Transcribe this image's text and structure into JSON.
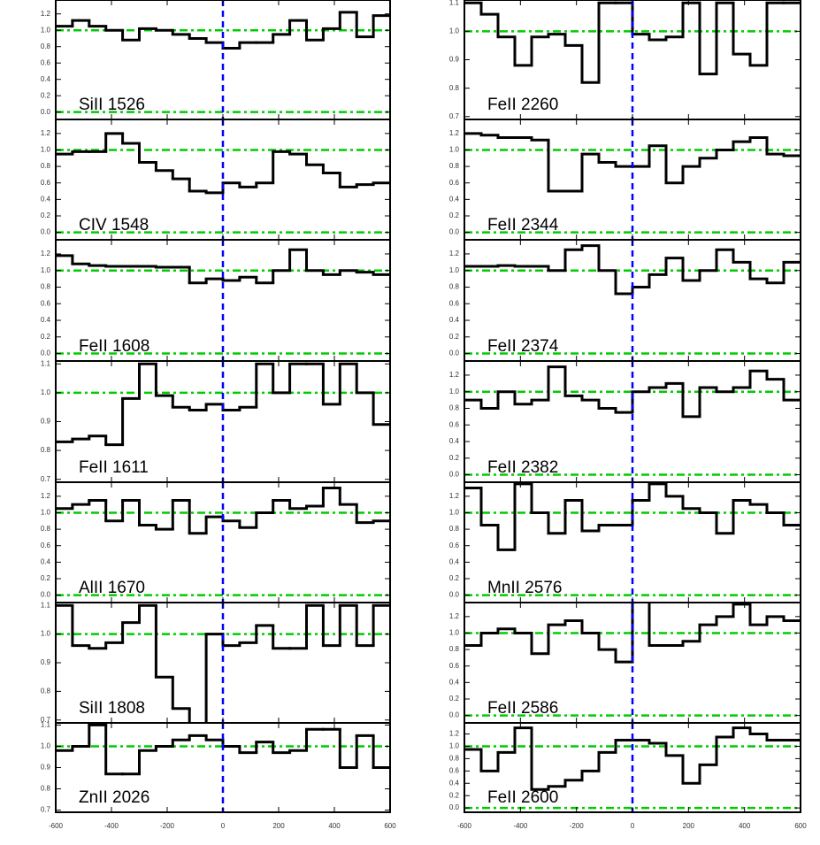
{
  "chart_data": [
    {
      "type": "line",
      "drawstyle": "steps-post",
      "label": "SiII 1526",
      "color": "#000000",
      "xlim": [
        -600,
        600
      ],
      "xticks": [
        -600,
        -400,
        -200,
        0,
        200,
        400,
        600
      ],
      "ylim": [
        -0.09,
        1.37
      ],
      "yticks": [
        {
          "value": 0,
          "label": "0.0"
        },
        0.2,
        0.4,
        0.6,
        0.8,
        {
          "value": 1,
          "label": "1.0"
        },
        1.2
      ],
      "hlines": {
        "values": [
          0,
          1
        ],
        "color": "#00cc00"
      },
      "vlines": {
        "values": [
          0
        ],
        "color": "#0000ff"
      },
      "x": [
        -600,
        -540,
        -480,
        -420,
        -360,
        -300,
        -240,
        -180,
        -120,
        -60,
        0,
        60,
        120,
        180,
        240,
        300,
        360,
        420,
        480,
        540
      ],
      "values": [
        1.05,
        1.12,
        1.05,
        1.0,
        0.88,
        1.02,
        1.0,
        0.95,
        0.9,
        0.85,
        0.78,
        0.85,
        0.85,
        0.95,
        1.12,
        0.88,
        1.02,
        1.22,
        0.92,
        1.18
      ]
    },
    {
      "type": "line",
      "drawstyle": "steps-post",
      "label": "CIV 1548",
      "color": "#000000",
      "xlim": [
        -600,
        600
      ],
      "xticks": [
        -600,
        -400,
        -200,
        0,
        200,
        400,
        600
      ],
      "ylim": [
        -0.09,
        1.37
      ],
      "yticks": [
        {
          "value": 0,
          "label": "0.0"
        },
        0.2,
        0.4,
        0.6,
        0.8,
        {
          "value": 1,
          "label": "1.0"
        },
        1.2
      ],
      "hlines": {
        "values": [
          0,
          1
        ],
        "color": "#00cc00"
      },
      "vlines": {
        "values": [
          0
        ],
        "color": "#0000ff"
      },
      "x": [
        -600,
        -540,
        -480,
        -420,
        -360,
        -300,
        -240,
        -180,
        -120,
        -60,
        0,
        60,
        120,
        180,
        240,
        300,
        360,
        420,
        480,
        540
      ],
      "values": [
        0.95,
        0.98,
        0.98,
        1.2,
        1.08,
        0.85,
        0.75,
        0.65,
        0.5,
        0.48,
        0.6,
        0.55,
        0.6,
        0.98,
        0.95,
        0.82,
        0.72,
        0.55,
        0.58,
        0.6
      ]
    },
    {
      "type": "line",
      "drawstyle": "steps-post",
      "label": "FeII 1608",
      "color": "#000000",
      "xlim": [
        -600,
        600
      ],
      "xticks": [
        -600,
        -400,
        -200,
        0,
        200,
        400,
        600
      ],
      "ylim": [
        -0.09,
        1.37
      ],
      "yticks": [
        {
          "value": 0,
          "label": "0.0"
        },
        0.2,
        0.4,
        0.6,
        0.8,
        {
          "value": 1,
          "label": "1.0"
        },
        1.2
      ],
      "hlines": {
        "values": [
          0,
          1
        ],
        "color": "#00cc00"
      },
      "vlines": {
        "values": [
          0
        ],
        "color": "#0000ff"
      },
      "x": [
        -600,
        -540,
        -480,
        -420,
        -360,
        -300,
        -240,
        -180,
        -120,
        -60,
        0,
        60,
        120,
        180,
        240,
        300,
        360,
        420,
        480,
        540
      ],
      "values": [
        1.18,
        1.08,
        1.06,
        1.05,
        1.05,
        1.05,
        1.04,
        1.04,
        0.85,
        0.9,
        0.88,
        0.92,
        0.85,
        1.0,
        1.25,
        1.0,
        0.95,
        1.0,
        0.98,
        0.95
      ]
    },
    {
      "type": "line",
      "drawstyle": "steps-post",
      "label": "FeII 1611",
      "color": "#000000",
      "xlim": [
        -600,
        600
      ],
      "xticks": [
        -600,
        -400,
        -200,
        0,
        200,
        400,
        600
      ],
      "ylim": [
        0.69,
        1.11
      ],
      "yticks": [
        0.7,
        0.8,
        0.9,
        {
          "value": 1,
          "label": "1.0"
        },
        1.1
      ],
      "hlines": {
        "values": [
          1
        ],
        "color": "#00cc00"
      },
      "vlines": {
        "values": [
          0
        ],
        "color": "#0000ff"
      },
      "x": [
        -600,
        -540,
        -480,
        -420,
        -360,
        -300,
        -240,
        -180,
        -120,
        -60,
        0,
        60,
        120,
        180,
        240,
        300,
        360,
        420,
        480,
        540
      ],
      "values": [
        0.83,
        0.84,
        0.85,
        0.82,
        0.98,
        1.1,
        0.99,
        0.95,
        0.94,
        0.96,
        0.94,
        0.95,
        1.1,
        1.0,
        1.1,
        1.1,
        0.96,
        1.1,
        1.0,
        0.89
      ]
    },
    {
      "type": "line",
      "drawstyle": "steps-post",
      "label": "AlII 1670",
      "color": "#000000",
      "xlim": [
        -600,
        600
      ],
      "xticks": [
        -600,
        -400,
        -200,
        0,
        200,
        400,
        600
      ],
      "ylim": [
        -0.09,
        1.37
      ],
      "yticks": [
        {
          "value": 0,
          "label": "0.0"
        },
        0.2,
        0.4,
        0.6,
        0.8,
        {
          "value": 1,
          "label": "1.0"
        },
        1.2
      ],
      "hlines": {
        "values": [
          0,
          1
        ],
        "color": "#00cc00"
      },
      "vlines": {
        "values": [
          0
        ],
        "color": "#0000ff"
      },
      "x": [
        -600,
        -540,
        -480,
        -420,
        -360,
        -300,
        -240,
        -180,
        -120,
        -60,
        0,
        60,
        120,
        180,
        240,
        300,
        360,
        420,
        480,
        540
      ],
      "values": [
        1.05,
        1.1,
        1.15,
        0.9,
        1.15,
        0.85,
        0.8,
        1.15,
        0.75,
        0.95,
        0.9,
        0.82,
        1.0,
        1.15,
        1.05,
        1.08,
        1.3,
        1.1,
        0.88,
        0.9
      ]
    },
    {
      "type": "line",
      "drawstyle": "steps-post",
      "label": "SiII 1808",
      "color": "#000000",
      "xlim": [
        -600,
        600
      ],
      "xticks": [
        -600,
        -400,
        -200,
        0,
        200,
        400,
        600
      ],
      "ylim": [
        0.69,
        1.11
      ],
      "yticks": [
        0.7,
        0.8,
        0.9,
        {
          "value": 1,
          "label": "1.0"
        },
        1.1
      ],
      "hlines": {
        "values": [
          1
        ],
        "color": "#00cc00"
      },
      "vlines": {
        "values": [
          0
        ],
        "color": "#0000ff"
      },
      "x": [
        -600,
        -540,
        -480,
        -420,
        -360,
        -300,
        -240,
        -180,
        -120,
        -60,
        0,
        60,
        120,
        180,
        240,
        300,
        360,
        420,
        480,
        540
      ],
      "values": [
        1.1,
        0.96,
        0.95,
        0.97,
        1.04,
        1.1,
        0.85,
        0.74,
        0.68,
        1.0,
        0.96,
        0.97,
        1.03,
        0.95,
        0.95,
        1.1,
        0.96,
        1.1,
        0.96,
        1.1
      ]
    },
    {
      "type": "line",
      "drawstyle": "steps-post",
      "label": "ZnII 2026",
      "color": "#000000",
      "xlim": [
        -600,
        600
      ],
      "xticks": [
        -600,
        -400,
        -200,
        0,
        200,
        400,
        600
      ],
      "ylim": [
        0.69,
        1.11
      ],
      "yticks": [
        0.7,
        0.8,
        0.9,
        {
          "value": 1,
          "label": "1.0"
        },
        1.1
      ],
      "hlines": {
        "values": [
          1
        ],
        "color": "#00cc00"
      },
      "vlines": {
        "values": [
          0
        ],
        "color": "#0000ff"
      },
      "x": [
        -600,
        -540,
        -480,
        -420,
        -360,
        -300,
        -240,
        -180,
        -120,
        -60,
        0,
        60,
        120,
        180,
        240,
        300,
        360,
        420,
        480,
        540
      ],
      "values": [
        0.98,
        1.0,
        1.1,
        0.87,
        0.87,
        0.98,
        1.0,
        1.03,
        1.05,
        1.03,
        1.0,
        0.97,
        1.02,
        0.97,
        0.98,
        1.08,
        1.08,
        0.9,
        1.05,
        0.9
      ]
    },
    {
      "type": "line",
      "drawstyle": "steps-post",
      "label": "FeII 2260",
      "color": "#000000",
      "xlim": [
        -600,
        600
      ],
      "xticks": [
        -600,
        -400,
        -200,
        0,
        200,
        400,
        600
      ],
      "ylim": [
        0.69,
        1.11
      ],
      "yticks": [
        0.7,
        0.8,
        0.9,
        {
          "value": 1,
          "label": "1.0"
        },
        1.1
      ],
      "hlines": {
        "values": [
          1
        ],
        "color": "#00cc00"
      },
      "vlines": {
        "values": [
          0
        ],
        "color": "#0000ff"
      },
      "x": [
        -600,
        -540,
        -480,
        -420,
        -360,
        -300,
        -240,
        -180,
        -120,
        -60,
        0,
        60,
        120,
        180,
        240,
        300,
        360,
        420,
        480,
        540
      ],
      "values": [
        1.1,
        1.06,
        0.98,
        0.88,
        0.98,
        0.99,
        0.95,
        0.82,
        1.1,
        1.1,
        0.99,
        0.97,
        0.98,
        1.1,
        0.85,
        1.1,
        0.92,
        0.88,
        1.1,
        1.1
      ]
    },
    {
      "type": "line",
      "drawstyle": "steps-post",
      "label": "FeII 2344",
      "color": "#000000",
      "xlim": [
        -600,
        600
      ],
      "xticks": [
        -600,
        -400,
        -200,
        0,
        200,
        400,
        600
      ],
      "ylim": [
        -0.09,
        1.37
      ],
      "yticks": [
        {
          "value": 0,
          "label": "0.0"
        },
        0.2,
        0.4,
        0.6,
        0.8,
        {
          "value": 1,
          "label": "1.0"
        },
        1.2
      ],
      "hlines": {
        "values": [
          0,
          1
        ],
        "color": "#00cc00"
      },
      "vlines": {
        "values": [
          0
        ],
        "color": "#0000ff"
      },
      "x": [
        -600,
        -540,
        -480,
        -420,
        -360,
        -300,
        -240,
        -180,
        -120,
        -60,
        0,
        60,
        120,
        180,
        240,
        300,
        360,
        420,
        480,
        540
      ],
      "values": [
        1.2,
        1.18,
        1.15,
        1.15,
        1.12,
        0.5,
        0.5,
        0.95,
        0.85,
        0.8,
        0.8,
        1.05,
        0.6,
        0.8,
        0.9,
        1.0,
        1.1,
        1.15,
        0.95,
        0.93
      ]
    },
    {
      "type": "line",
      "drawstyle": "steps-post",
      "label": "FeII 2374",
      "color": "#000000",
      "xlim": [
        -600,
        600
      ],
      "xticks": [
        -600,
        -400,
        -200,
        0,
        200,
        400,
        600
      ],
      "ylim": [
        -0.09,
        1.37
      ],
      "yticks": [
        {
          "value": 0,
          "label": "0.0"
        },
        0.2,
        0.4,
        0.6,
        0.8,
        {
          "value": 1,
          "label": "1.0"
        },
        1.2
      ],
      "hlines": {
        "values": [
          0,
          1
        ],
        "color": "#00cc00"
      },
      "vlines": {
        "values": [
          0
        ],
        "color": "#0000ff"
      },
      "x": [
        -600,
        -540,
        -480,
        -420,
        -360,
        -300,
        -240,
        -180,
        -120,
        -60,
        0,
        60,
        120,
        180,
        240,
        300,
        360,
        420,
        480,
        540
      ],
      "values": [
        1.05,
        1.05,
        1.06,
        1.05,
        1.05,
        1.0,
        1.25,
        1.3,
        1.0,
        0.72,
        0.8,
        0.95,
        1.15,
        0.88,
        1.0,
        1.25,
        1.1,
        0.9,
        0.85,
        1.1
      ]
    },
    {
      "type": "line",
      "drawstyle": "steps-post",
      "label": "FeII 2382",
      "color": "#000000",
      "xlim": [
        -600,
        600
      ],
      "xticks": [
        -600,
        -400,
        -200,
        0,
        200,
        400,
        600
      ],
      "ylim": [
        -0.09,
        1.37
      ],
      "yticks": [
        {
          "value": 0,
          "label": "0.0"
        },
        0.2,
        0.4,
        0.6,
        0.8,
        {
          "value": 1,
          "label": "1.0"
        },
        1.2
      ],
      "hlines": {
        "values": [
          0,
          1
        ],
        "color": "#00cc00"
      },
      "vlines": {
        "values": [
          0
        ],
        "color": "#0000ff"
      },
      "x": [
        -600,
        -540,
        -480,
        -420,
        -360,
        -300,
        -240,
        -180,
        -120,
        -60,
        0,
        60,
        120,
        180,
        240,
        300,
        360,
        420,
        480,
        540
      ],
      "values": [
        0.9,
        0.8,
        1.0,
        0.85,
        0.9,
        1.3,
        0.95,
        0.9,
        0.8,
        0.75,
        1.0,
        1.05,
        1.1,
        0.7,
        1.05,
        1.0,
        1.05,
        1.25,
        1.15,
        0.9
      ]
    },
    {
      "type": "line",
      "drawstyle": "steps-post",
      "label": "MnII 2576",
      "color": "#000000",
      "xlim": [
        -600,
        600
      ],
      "xticks": [
        -600,
        -400,
        -200,
        0,
        200,
        400,
        600
      ],
      "ylim": [
        -0.09,
        1.37
      ],
      "yticks": [
        {
          "value": 0,
          "label": "0.0"
        },
        0.2,
        0.4,
        0.6,
        0.8,
        {
          "value": 1,
          "label": "1.0"
        },
        1.2
      ],
      "hlines": {
        "values": [
          0,
          1
        ],
        "color": "#00cc00"
      },
      "vlines": {
        "values": [
          0
        ],
        "color": "#0000ff"
      },
      "x": [
        -600,
        -540,
        -480,
        -420,
        -360,
        -300,
        -240,
        -180,
        -120,
        -60,
        0,
        60,
        120,
        180,
        240,
        300,
        360,
        420,
        480,
        540
      ],
      "values": [
        1.3,
        0.85,
        0.55,
        1.35,
        1.0,
        0.75,
        1.15,
        0.78,
        0.85,
        0.85,
        1.15,
        1.35,
        1.2,
        1.05,
        1.0,
        0.75,
        1.15,
        1.1,
        1.0,
        0.85
      ]
    },
    {
      "type": "line",
      "drawstyle": "steps-post",
      "label": "FeII 2586",
      "color": "#000000",
      "xlim": [
        -600,
        600
      ],
      "xticks": [
        -600,
        -400,
        -200,
        0,
        200,
        400,
        600
      ],
      "ylim": [
        -0.09,
        1.37
      ],
      "yticks": [
        {
          "value": 0,
          "label": "0.0"
        },
        0.2,
        0.4,
        0.6,
        0.8,
        {
          "value": 1,
          "label": "1.0"
        },
        1.2
      ],
      "hlines": {
        "values": [
          0,
          1
        ],
        "color": "#00cc00"
      },
      "vlines": {
        "values": [
          0
        ],
        "color": "#0000ff"
      },
      "x": [
        -600,
        -540,
        -480,
        -420,
        -360,
        -300,
        -240,
        -180,
        -120,
        -60,
        0,
        60,
        120,
        180,
        240,
        300,
        360,
        420,
        480,
        540
      ],
      "values": [
        0.85,
        1.0,
        1.05,
        1.0,
        0.75,
        1.1,
        1.15,
        1.0,
        0.8,
        0.65,
        1.4,
        0.85,
        0.85,
        0.9,
        1.1,
        1.2,
        1.35,
        1.1,
        1.2,
        1.15
      ]
    },
    {
      "type": "line",
      "drawstyle": "steps-post",
      "label": "FeII 2600",
      "color": "#000000",
      "xlim": [
        -600,
        600
      ],
      "xticks": [
        -600,
        -400,
        -200,
        0,
        200,
        400,
        600
      ],
      "ylim": [
        -0.07,
        1.38
      ],
      "yticks": [
        {
          "value": 0,
          "label": "0.0"
        },
        0.2,
        0.4,
        0.6,
        0.8,
        {
          "value": 1,
          "label": "1.0"
        },
        1.2
      ],
      "hlines": {
        "values": [
          0,
          1
        ],
        "color": "#00cc00"
      },
      "vlines": {
        "values": [
          0
        ],
        "color": "#0000ff"
      },
      "x": [
        -600,
        -540,
        -480,
        -420,
        -360,
        -300,
        -240,
        -180,
        -120,
        -60,
        0,
        60,
        120,
        180,
        240,
        300,
        360,
        420,
        480,
        540
      ],
      "values": [
        0.95,
        0.6,
        0.9,
        1.3,
        0.3,
        0.35,
        0.45,
        0.6,
        0.9,
        1.1,
        1.1,
        1.05,
        0.85,
        0.4,
        0.7,
        1.15,
        1.3,
        1.2,
        1.1,
        1.1
      ]
    }
  ]
}
